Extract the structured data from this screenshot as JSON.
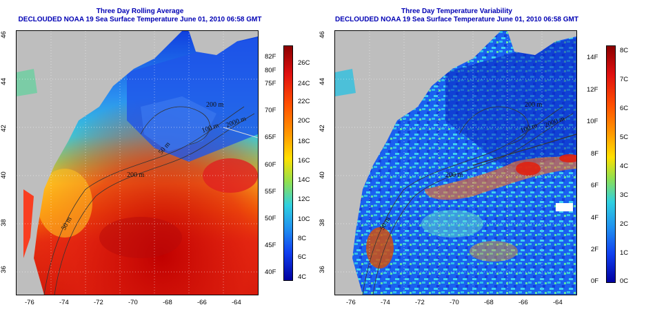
{
  "panels": [
    {
      "title1": "Three Day Rolling Average",
      "title2": "DECLOUDED NOAA 19 Sea Surface Temperature June 01, 2010 06:58 GMT",
      "lon_ticks": [
        "-76",
        "-74",
        "-72",
        "-70",
        "-68",
        "-66",
        "-64"
      ],
      "lat_ticks": [
        "46",
        "44",
        "42",
        "40",
        "38",
        "36"
      ],
      "colorbar_left": [
        "82F",
        "80F",
        "75F",
        "70F",
        "65F",
        "60F",
        "55F",
        "50F",
        "45F",
        "40F"
      ],
      "colorbar_right": [
        "26C",
        "24C",
        "22C",
        "20C",
        "18C",
        "16C",
        "14C",
        "12C",
        "10C",
        "8C",
        "6C",
        "4C"
      ],
      "contours": [
        "2000 m",
        "200 m",
        "100 m",
        "50 m",
        "200 m",
        "50 m"
      ]
    },
    {
      "title1": "Three Day Temperature Variability",
      "title2": "DECLOUDED NOAA 19 Sea Surface Temperature June 01, 2010 06:58 GMT",
      "lon_ticks": [
        "-76",
        "-74",
        "-72",
        "-70",
        "-68",
        "-66",
        "-64"
      ],
      "lat_ticks": [
        "46",
        "44",
        "42",
        "40",
        "38",
        "36"
      ],
      "colorbar_left": [
        "14F",
        "12F",
        "10F",
        "8F",
        "6F",
        "4F",
        "2F",
        "0F"
      ],
      "colorbar_right": [
        "8C",
        "7C",
        "6C",
        "5C",
        "4C",
        "3C",
        "2C",
        "1C",
        "0C"
      ],
      "contours": [
        "2000 m",
        "200 m",
        "100 m",
        "50 m",
        "200 m"
      ]
    }
  ],
  "colors": {
    "land": "#bebebe",
    "title": "#0000b4",
    "scale_hot": "#8b0000",
    "scale_cold": "#00008b"
  }
}
